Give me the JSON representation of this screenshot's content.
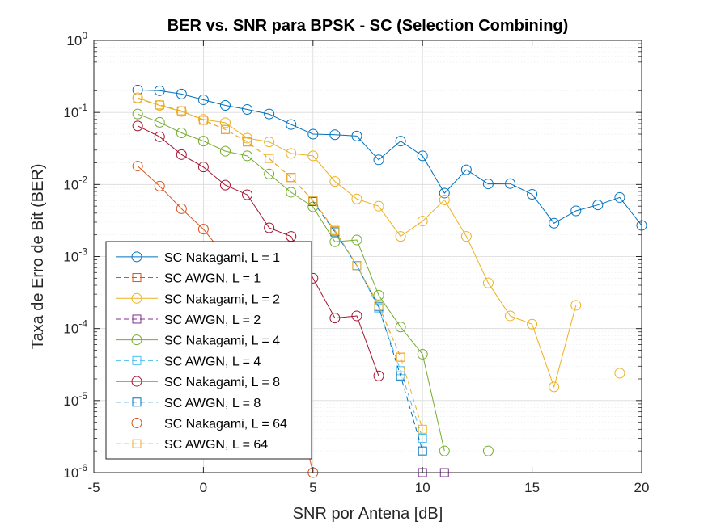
{
  "chart_data": {
    "type": "line",
    "title": "BER vs. SNR para BPSK - SC (Selection Combining)",
    "xlabel": "SNR por Antena [dB]",
    "ylabel": "Taxa de Erro de Bit (BER)",
    "xlim": [
      -5,
      20
    ],
    "ylim": [
      1e-06,
      1
    ],
    "yscale": "log",
    "grid": true,
    "legend_position": "bottom-left",
    "xticks": [
      -5,
      0,
      5,
      10,
      15,
      20
    ],
    "xtick_labels": [
      "-5",
      "0",
      "5",
      "10",
      "15",
      "20"
    ],
    "yticks": [
      {
        "value": 1,
        "base": "10",
        "exp": "0"
      },
      {
        "value": 0.1,
        "base": "10",
        "exp": "-1"
      },
      {
        "value": 0.01,
        "base": "10",
        "exp": "-2"
      },
      {
        "value": 0.001,
        "base": "10",
        "exp": "-3"
      },
      {
        "value": 0.0001,
        "base": "10",
        "exp": "-4"
      },
      {
        "value": 1e-05,
        "base": "10",
        "exp": "-5"
      },
      {
        "value": 1e-06,
        "base": "10",
        "exp": "-6"
      }
    ],
    "series": [
      {
        "name": "SC Nakagami, L = 1",
        "color": "#0072BD",
        "marker": "circle",
        "dashed": false,
        "x": [
          -3,
          -2,
          -1,
          0,
          1,
          2,
          3,
          4,
          5,
          6,
          7,
          8,
          9,
          10,
          11,
          12,
          13,
          14,
          15,
          16,
          17,
          18,
          19,
          20
        ],
        "y": [
          0.205,
          0.2,
          0.18,
          0.15,
          0.125,
          0.11,
          0.095,
          0.068,
          0.05,
          0.049,
          0.047,
          0.022,
          0.04,
          0.025,
          0.0076,
          0.016,
          0.0102,
          0.0103,
          0.0073,
          0.0029,
          0.0043,
          0.0052,
          0.0066,
          0.0027
        ]
      },
      {
        "name": "SC AWGN, L = 1",
        "color": "#D95319",
        "marker": "square",
        "dashed": true,
        "x": [
          -3,
          -2,
          -1,
          0,
          1,
          2,
          3,
          4,
          5,
          6,
          7,
          8,
          9
        ],
        "y": [
          0.155,
          0.127,
          0.105,
          0.078,
          0.058,
          0.039,
          0.023,
          0.0125,
          0.006,
          0.0023,
          0.00075,
          0.00021,
          4e-05
        ]
      },
      {
        "name": "SC Nakagami, L = 2",
        "color": "#EDB120",
        "marker": "circle",
        "dashed": false,
        "x": [
          -3,
          -2,
          -1,
          0,
          1,
          2,
          3,
          4,
          5,
          6,
          7,
          8,
          9,
          10,
          11,
          12,
          13,
          14,
          15,
          16,
          17
        ],
        "y": [
          0.16,
          0.125,
          0.103,
          0.08,
          0.072,
          0.044,
          0.039,
          0.027,
          0.025,
          0.011,
          0.0063,
          0.005,
          0.0019,
          0.0031,
          0.0061,
          0.0019,
          0.00043,
          0.00015,
          0.000115,
          1.55e-05,
          0.00021
        ]
      },
      {
        "name": "SC AWGN, L = 2",
        "color": "#7E2F8E",
        "marker": "square",
        "dashed": true,
        "x": [
          10,
          11
        ],
        "y": [
          1e-06,
          1e-06
        ]
      },
      {
        "name": "SC Nakagami, L = 4",
        "color": "#77AC30",
        "marker": "circle",
        "dashed": false,
        "x": [
          -3,
          -2,
          -1,
          0,
          1,
          2,
          3,
          4,
          5,
          6,
          7,
          8,
          9,
          10,
          11
        ],
        "y": [
          0.095,
          0.073,
          0.052,
          0.04,
          0.029,
          0.025,
          0.014,
          0.0078,
          0.0049,
          0.0016,
          0.0017,
          0.00029,
          0.000105,
          4.4e-05,
          2e-06
        ]
      },
      {
        "name": "SC AWGN, L = 4",
        "color": "#4DBEEE",
        "marker": "square",
        "dashed": true,
        "x": [
          6,
          7,
          8,
          9,
          10
        ],
        "y": [
          0.0022,
          0.00075,
          0.00019,
          2.6e-05,
          3e-06
        ]
      },
      {
        "name": "SC Nakagami, L = 8",
        "color": "#A2142F",
        "marker": "circle",
        "dashed": false,
        "x": [
          -3,
          -2,
          -1,
          0,
          1,
          2,
          3,
          4,
          5,
          6,
          7,
          8
        ],
        "y": [
          0.065,
          0.046,
          0.026,
          0.0175,
          0.0098,
          0.0072,
          0.0025,
          0.0019,
          0.0005,
          0.00014,
          0.00015,
          2.2e-05
        ]
      },
      {
        "name": "SC AWGN, L = 8",
        "color": "#0072BD",
        "marker": "square",
        "dashed": true,
        "x": [
          5,
          6,
          7,
          8,
          9,
          10
        ],
        "y": [
          0.0058,
          0.0022,
          0.00075,
          0.0002,
          2.2e-05,
          2e-06
        ]
      },
      {
        "name": "SC Nakagami, L = 64",
        "color": "#D95319",
        "marker": "circle",
        "dashed": false,
        "x": [
          -3,
          -2,
          -1,
          0,
          1,
          2,
          3,
          4,
          5
        ],
        "y": [
          0.018,
          0.0095,
          0.0046,
          0.0024,
          0.001,
          0.0005,
          0.00015,
          2e-05,
          1e-06
        ]
      },
      {
        "name": "SC AWGN, L = 64",
        "color": "#EDB120",
        "marker": "square",
        "dashed": true,
        "x": [
          -3,
          -2,
          -1,
          0,
          1,
          2,
          3,
          4,
          5,
          6,
          7,
          8,
          9,
          10
        ],
        "y": [
          0.155,
          0.127,
          0.105,
          0.078,
          0.058,
          0.039,
          0.023,
          0.0125,
          0.006,
          0.0023,
          0.00075,
          0.00021,
          4e-05,
          4e-06
        ]
      }
    ],
    "isolated_points": [
      {
        "series": "SC Nakagami, L = 2",
        "x": 19,
        "y": 2.4e-05,
        "color": "#EDB120",
        "marker": "circle"
      },
      {
        "series": "SC Nakagami, L = 4",
        "x": 13,
        "y": 2e-06,
        "color": "#77AC30",
        "marker": "circle"
      }
    ]
  }
}
